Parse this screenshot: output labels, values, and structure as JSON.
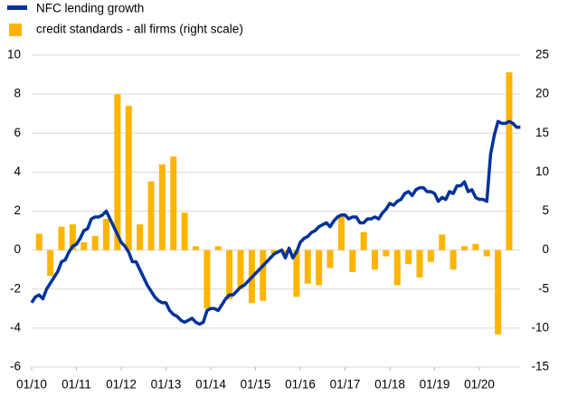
{
  "chart_data": {
    "type": "bar-line",
    "series": [
      {
        "name": "NFC lending growth",
        "type": "line",
        "color": "#003299",
        "axis": "y",
        "x": [
          "01/10",
          "02/10",
          "03/10",
          "04/10",
          "05/10",
          "06/10",
          "07/10",
          "08/10",
          "09/10",
          "10/10",
          "11/10",
          "12/10",
          "01/11",
          "02/11",
          "03/11",
          "04/11",
          "05/11",
          "06/11",
          "07/11",
          "08/11",
          "09/11",
          "10/11",
          "11/11",
          "12/11",
          "01/12",
          "02/12",
          "03/12",
          "04/12",
          "05/12",
          "06/12",
          "07/12",
          "08/12",
          "09/12",
          "10/12",
          "11/12",
          "12/12",
          "01/13",
          "02/13",
          "03/13",
          "04/13",
          "05/13",
          "06/13",
          "07/13",
          "08/13",
          "09/13",
          "10/13",
          "11/13",
          "12/13",
          "01/14",
          "02/14",
          "03/14",
          "04/14",
          "05/14",
          "06/14",
          "07/14",
          "08/14",
          "09/14",
          "10/14",
          "11/14",
          "12/14",
          "01/15",
          "02/15",
          "03/15",
          "04/15",
          "05/15",
          "06/15",
          "07/15",
          "08/15",
          "09/15",
          "10/15",
          "11/15",
          "12/15",
          "01/16",
          "02/16",
          "03/16",
          "04/16",
          "05/16",
          "06/16",
          "07/16",
          "08/16",
          "09/16",
          "10/16",
          "11/16",
          "12/16",
          "01/17",
          "02/17",
          "03/17",
          "04/17",
          "05/17",
          "06/17",
          "07/17",
          "08/17",
          "09/17",
          "10/17",
          "11/17",
          "12/17",
          "01/18",
          "02/18",
          "03/18",
          "04/18",
          "05/18",
          "06/18",
          "07/18",
          "08/18",
          "09/18",
          "10/18",
          "11/18",
          "12/18",
          "01/19",
          "02/19",
          "03/19",
          "04/19",
          "05/19",
          "06/19",
          "07/19",
          "08/19",
          "09/19",
          "10/19",
          "11/19",
          "12/19",
          "01/20",
          "02/20",
          "03/20",
          "04/20",
          "05/20",
          "06/20",
          "07/20",
          "08/20",
          "09/20",
          "10/20",
          "11/20",
          "12/20"
        ],
        "values": [
          -2.7,
          -2.4,
          -2.3,
          -2.5,
          -2.0,
          -1.7,
          -1.4,
          -1.1,
          -0.6,
          -0.5,
          -0.1,
          0.2,
          0.3,
          0.6,
          1.0,
          1.1,
          1.6,
          1.7,
          1.7,
          1.8,
          2.0,
          1.6,
          1.2,
          0.8,
          0.4,
          0.2,
          -0.1,
          -0.6,
          -0.6,
          -1.0,
          -1.4,
          -1.8,
          -2.1,
          -2.4,
          -2.6,
          -2.7,
          -2.7,
          -3.1,
          -3.3,
          -3.4,
          -3.6,
          -3.7,
          -3.6,
          -3.5,
          -3.7,
          -3.8,
          -3.7,
          -3.1,
          -3.0,
          -3.0,
          -3.1,
          -2.8,
          -2.5,
          -2.3,
          -2.3,
          -2.1,
          -1.9,
          -1.8,
          -1.6,
          -1.4,
          -1.2,
          -1.0,
          -0.8,
          -0.6,
          -0.4,
          -0.2,
          -0.1,
          0.0,
          -0.4,
          0.1,
          -0.4,
          -0.1,
          0.4,
          0.6,
          0.7,
          0.9,
          1.0,
          1.2,
          1.3,
          1.4,
          1.2,
          1.5,
          1.7,
          1.8,
          1.8,
          1.6,
          1.7,
          1.7,
          1.4,
          1.4,
          1.6,
          1.6,
          1.7,
          1.6,
          1.9,
          2.1,
          2.4,
          2.3,
          2.5,
          2.6,
          2.9,
          3.0,
          2.8,
          3.1,
          3.2,
          3.2,
          3.0,
          3.0,
          2.9,
          2.5,
          2.7,
          2.6,
          3.0,
          2.9,
          3.3,
          3.3,
          3.5,
          3.0,
          3.1,
          2.7,
          2.6,
          2.6,
          2.5,
          4.9,
          5.9,
          6.6,
          6.5,
          6.5,
          6.6,
          6.5,
          6.3,
          6.3
        ]
      },
      {
        "name": "credit standards - all firms (right scale)",
        "type": "bar",
        "color": "#ffb400",
        "axis": "y2",
        "x": [
          "01/10",
          "04/10",
          "07/10",
          "10/10",
          "01/11",
          "04/11",
          "07/11",
          "10/11",
          "01/12",
          "04/12",
          "07/12",
          "10/12",
          "01/13",
          "04/13",
          "07/13",
          "10/13",
          "01/14",
          "04/14",
          "07/14",
          "10/14",
          "01/15",
          "04/15",
          "07/15",
          "10/15",
          "01/16",
          "04/16",
          "07/16",
          "10/16",
          "01/17",
          "04/17",
          "07/17",
          "10/17",
          "01/18",
          "04/18",
          "07/18",
          "10/18",
          "01/19",
          "04/19",
          "07/19",
          "10/19",
          "01/20",
          "04/20",
          "07/20"
        ],
        "values": [
          2.1,
          -3.3,
          3.0,
          3.3,
          1.0,
          1.8,
          4.0,
          20.0,
          18.5,
          3.3,
          8.8,
          11.0,
          12.0,
          4.8,
          0.5,
          -7.5,
          0.5,
          -6.3,
          -5.0,
          -6.8,
          -6.5,
          -0.5,
          -0.5,
          -6.0,
          -4.3,
          -4.5,
          -2.3,
          4.3,
          -2.8,
          2.3,
          -2.5,
          -0.8,
          -4.5,
          -1.8,
          -3.5,
          -1.5,
          2.0,
          -2.5,
          0.5,
          0.8,
          -0.8,
          -10.8,
          22.8
        ]
      }
    ],
    "xticks": [
      "01/10",
      "01/11",
      "01/12",
      "01/13",
      "01/14",
      "01/15",
      "01/16",
      "01/17",
      "01/18",
      "01/19",
      "01/20"
    ],
    "ylim": [
      -6,
      10
    ],
    "yticks": [
      -6,
      -4,
      -2,
      0,
      2,
      4,
      6,
      8,
      10
    ],
    "y2lim": [
      -15,
      25
    ],
    "y2ticks": [
      -15,
      -10,
      -5,
      0,
      5,
      10,
      15,
      20,
      25
    ],
    "grid": true
  }
}
